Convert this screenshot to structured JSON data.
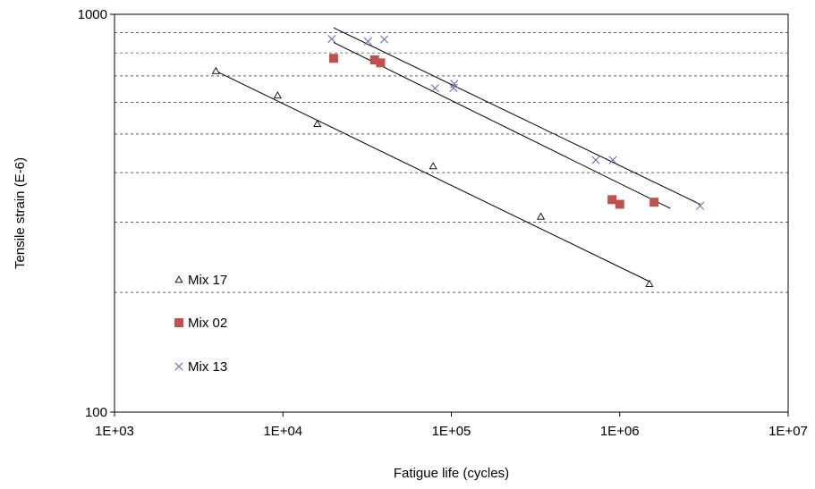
{
  "chart_data": {
    "type": "scatter",
    "xscale": "log",
    "yscale": "log",
    "xlim": [
      1000,
      10000000
    ],
    "ylim": [
      100,
      1000
    ],
    "xlabel": "Fatigue life (cycles)",
    "ylabel": "Tensile strain (E-6)",
    "x_ticks": [
      {
        "value": 1000,
        "label": "1E+03"
      },
      {
        "value": 10000,
        "label": "1E+04"
      },
      {
        "value": 100000,
        "label": "1E+05"
      },
      {
        "value": 1000000,
        "label": "1E+06"
      },
      {
        "value": 10000000,
        "label": "1E+07"
      }
    ],
    "y_ticks": [
      {
        "value": 100,
        "label": "100"
      },
      {
        "value": 1000,
        "label": "1000"
      }
    ],
    "y_gridlines": [
      200,
      300,
      400,
      500,
      600,
      700,
      800,
      900,
      1000
    ],
    "grid": "horizontal dashed",
    "legend_position": "left",
    "series": [
      {
        "name": "Mix 17",
        "marker": "open-triangle",
        "color": "#000000",
        "points": [
          [
            4000,
            720
          ],
          [
            9300,
            625
          ],
          [
            16000,
            530
          ],
          [
            78000,
            415
          ],
          [
            340000,
            310
          ],
          [
            1500000,
            210
          ]
        ],
        "trendline": [
          [
            4000,
            720
          ],
          [
            1500000,
            213
          ]
        ]
      },
      {
        "name": "Mix 02",
        "marker": "filled-square",
        "color": "#c0504d",
        "points": [
          [
            20000,
            775
          ],
          [
            35000,
            768
          ],
          [
            38000,
            755
          ],
          [
            900000,
            342
          ],
          [
            1000000,
            333
          ],
          [
            1600000,
            337
          ]
        ],
        "trendline": [
          [
            20000,
            850
          ],
          [
            2000000,
            325
          ]
        ]
      },
      {
        "name": "Mix 13",
        "marker": "cross",
        "color": "#7b6aa8",
        "points": [
          [
            19500,
            867
          ],
          [
            32000,
            855
          ],
          [
            40000,
            865
          ],
          [
            80000,
            652
          ],
          [
            104000,
            668
          ],
          [
            103000,
            653
          ],
          [
            720000,
            430
          ],
          [
            910000,
            430
          ],
          [
            3000000,
            330
          ]
        ],
        "trendline": [
          [
            20000,
            925
          ],
          [
            3000000,
            333
          ]
        ]
      }
    ]
  }
}
